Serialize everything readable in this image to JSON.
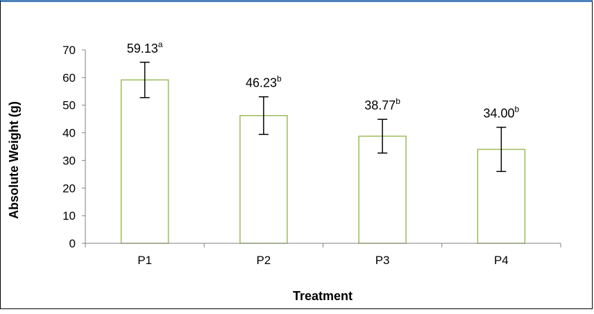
{
  "chart_data": {
    "type": "bar",
    "title": "",
    "xlabel": "Treatment",
    "ylabel": "Absolute Weight (g)",
    "categories": [
      "P1",
      "P2",
      "P3",
      "P4"
    ],
    "values": [
      59.13,
      46.23,
      38.77,
      34.0
    ],
    "error": [
      6.4,
      6.8,
      6.1,
      8.0
    ],
    "data_labels": [
      "59.13",
      "46.23",
      "38.77",
      "34.00"
    ],
    "significance_letters": [
      "a",
      "b",
      "b",
      "b"
    ],
    "ylim": [
      0,
      70
    ],
    "yticks": [
      0,
      10,
      20,
      30,
      40,
      50,
      60,
      70
    ],
    "grid": false,
    "legend": "none",
    "colors": {
      "bar_fill": "#ffffff",
      "bar_stroke": "#9bbb59",
      "axis": "#7f7f7f",
      "error_bar": "#000000",
      "frame_top": "#4f81bd"
    }
  }
}
